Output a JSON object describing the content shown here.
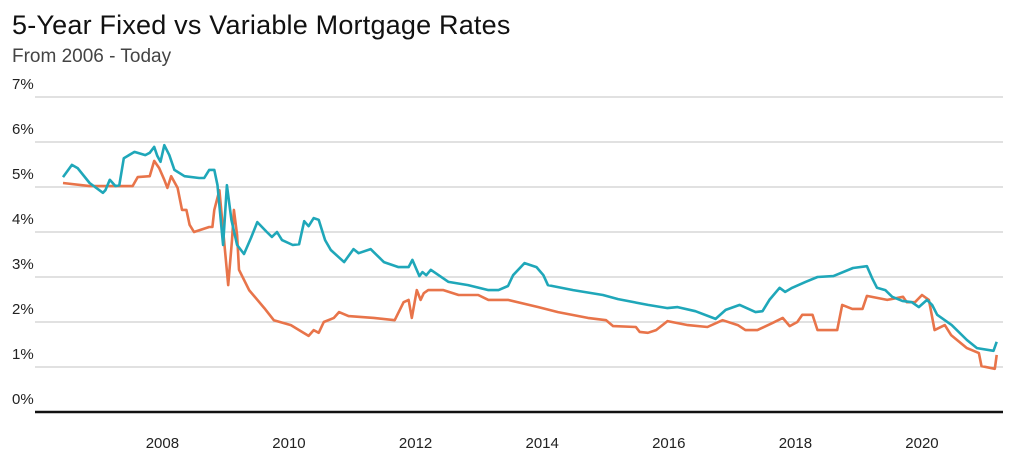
{
  "chart_data": {
    "type": "line",
    "title": "5-Year Fixed vs Variable Mortgage Rates",
    "subtitle": "From 2006 - Today",
    "xlabel": "",
    "ylabel": "",
    "xlim": [
      2006.43,
      2021.28
    ],
    "ylim": [
      0,
      7
    ],
    "grid": true,
    "legend": "none",
    "y_ticks": [
      "0%",
      "1%",
      "2%",
      "3%",
      "4%",
      "5%",
      "6%",
      "7%"
    ],
    "x_ticks": [
      "2008",
      "2010",
      "2012",
      "2014",
      "2016",
      "2018",
      "2020"
    ],
    "series": [
      {
        "name": "5-Year Fixed",
        "color": "#1fa7b9",
        "x": [
          2006.43,
          2006.57,
          2006.66,
          2006.85,
          2007.06,
          2007.1,
          2007.17,
          2007.26,
          2007.32,
          2007.39,
          2007.56,
          2007.73,
          2007.8,
          2007.87,
          2007.92,
          2007.97,
          2008.03,
          2008.11,
          2008.19,
          2008.35,
          2008.58,
          2008.66,
          2008.74,
          2008.82,
          2008.87,
          2008.96,
          2009.02,
          2009.09,
          2009.18,
          2009.29,
          2009.4,
          2009.5,
          2009.65,
          2009.73,
          2009.81,
          2009.89,
          2010.06,
          2010.16,
          2010.24,
          2010.31,
          2010.39,
          2010.47,
          2010.57,
          2010.66,
          2010.87,
          2011.02,
          2011.1,
          2011.29,
          2011.5,
          2011.73,
          2011.89,
          2011.95,
          2012.06,
          2012.11,
          2012.17,
          2012.24,
          2012.52,
          2012.83,
          2013.15,
          2013.31,
          2013.46,
          2013.54,
          2013.72,
          2013.91,
          2014.02,
          2014.09,
          2014.49,
          2014.96,
          2015.2,
          2015.67,
          2015.98,
          2016.14,
          2016.42,
          2016.74,
          2016.9,
          2017.12,
          2017.37,
          2017.48,
          2017.59,
          2017.75,
          2017.84,
          2017.95,
          2018.16,
          2018.35,
          2018.6,
          2018.91,
          2019.13,
          2019.21,
          2019.29,
          2019.42,
          2019.53,
          2019.69,
          2019.84,
          2019.95,
          2020.08,
          2020.16,
          2020.24,
          2020.47,
          2020.71,
          2020.87,
          2021.13,
          2021.18
        ],
        "y": [
          5.22,
          5.49,
          5.42,
          5.09,
          4.87,
          4.93,
          5.16,
          5.02,
          5.04,
          5.64,
          5.78,
          5.71,
          5.76,
          5.89,
          5.69,
          5.56,
          5.93,
          5.71,
          5.38,
          5.24,
          5.2,
          5.2,
          5.38,
          5.38,
          5.04,
          3.71,
          5.04,
          4.27,
          3.71,
          3.51,
          3.87,
          4.22,
          4.0,
          3.89,
          4.0,
          3.82,
          3.71,
          3.73,
          4.24,
          4.13,
          4.31,
          4.27,
          3.82,
          3.6,
          3.33,
          3.62,
          3.53,
          3.62,
          3.33,
          3.22,
          3.22,
          3.38,
          3.02,
          3.11,
          3.04,
          3.16,
          2.89,
          2.82,
          2.71,
          2.71,
          2.8,
          3.04,
          3.31,
          3.22,
          3.04,
          2.82,
          2.71,
          2.6,
          2.51,
          2.38,
          2.31,
          2.33,
          2.24,
          2.07,
          2.27,
          2.38,
          2.22,
          2.24,
          2.49,
          2.76,
          2.67,
          2.76,
          2.89,
          3.0,
          3.02,
          3.2,
          3.24,
          2.98,
          2.76,
          2.71,
          2.56,
          2.47,
          2.44,
          2.33,
          2.49,
          2.38,
          2.16,
          1.93,
          1.6,
          1.42,
          1.36,
          1.56
        ]
      },
      {
        "name": "Variable",
        "color": "#e8744a",
        "x": [
          2006.43,
          2006.85,
          2007.53,
          2007.61,
          2007.8,
          2007.87,
          2007.95,
          2008.03,
          2008.08,
          2008.14,
          2008.24,
          2008.31,
          2008.38,
          2008.43,
          2008.5,
          2008.74,
          2008.79,
          2008.82,
          2008.9,
          2009.04,
          2009.1,
          2009.13,
          2009.18,
          2009.21,
          2009.37,
          2009.61,
          2009.76,
          2010.03,
          2010.16,
          2010.31,
          2010.39,
          2010.47,
          2010.55,
          2010.71,
          2010.79,
          2010.94,
          2011.34,
          2011.67,
          2011.81,
          2011.89,
          2011.94,
          2012.02,
          2012.08,
          2012.13,
          2012.2,
          2012.44,
          2012.68,
          2012.99,
          2013.15,
          2013.46,
          2013.94,
          2014.25,
          2014.72,
          2015.01,
          2015.12,
          2015.48,
          2015.54,
          2015.67,
          2015.8,
          2015.98,
          2016.3,
          2016.61,
          2016.85,
          2017.09,
          2017.21,
          2017.4,
          2017.64,
          2017.8,
          2017.91,
          2018.03,
          2018.11,
          2018.27,
          2018.35,
          2018.66,
          2018.74,
          2018.9,
          2019.06,
          2019.13,
          2019.45,
          2019.7,
          2019.76,
          2019.89,
          2020.0,
          2020.11,
          2020.2,
          2020.36,
          2020.46,
          2020.71,
          2020.9,
          2020.94,
          2021.15,
          2021.18
        ],
        "y": [
          5.09,
          5.02,
          5.02,
          5.22,
          5.24,
          5.58,
          5.42,
          5.16,
          4.98,
          5.24,
          4.98,
          4.49,
          4.49,
          4.16,
          4.0,
          4.11,
          4.11,
          4.49,
          4.93,
          2.82,
          3.82,
          4.49,
          3.93,
          3.16,
          2.71,
          2.31,
          2.04,
          1.93,
          1.82,
          1.69,
          1.82,
          1.76,
          2.0,
          2.09,
          2.22,
          2.13,
          2.09,
          2.04,
          2.44,
          2.49,
          2.09,
          2.71,
          2.49,
          2.64,
          2.71,
          2.71,
          2.6,
          2.6,
          2.49,
          2.49,
          2.33,
          2.22,
          2.09,
          2.04,
          1.91,
          1.89,
          1.78,
          1.76,
          1.82,
          2.02,
          1.93,
          1.89,
          2.04,
          1.93,
          1.82,
          1.82,
          1.98,
          2.09,
          1.91,
          2.0,
          2.16,
          2.16,
          1.82,
          1.82,
          2.38,
          2.29,
          2.29,
          2.58,
          2.49,
          2.56,
          2.44,
          2.44,
          2.6,
          2.49,
          1.82,
          1.93,
          1.71,
          1.42,
          1.31,
          1.02,
          0.96,
          1.27
        ]
      }
    ]
  }
}
